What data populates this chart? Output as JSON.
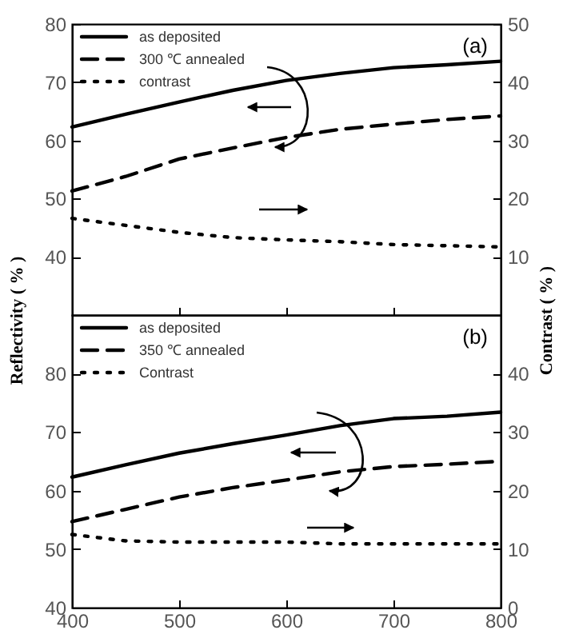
{
  "chart_data": [
    {
      "type": "line",
      "ylabel": "Reflectivity ( % )",
      "y2label": "Contrast ( % )",
      "annotations": [
        "(a)"
      ],
      "x": [
        400,
        450,
        500,
        550,
        600,
        650,
        700,
        750,
        800
      ],
      "xlim": [
        400,
        800
      ],
      "xticks": [
        400,
        500,
        600,
        700,
        800
      ],
      "ylim": [
        30,
        80
      ],
      "yticks": [
        40,
        50,
        60,
        70,
        80
      ],
      "y2lim": [
        0,
        50
      ],
      "y2ticks": [
        10,
        20,
        30,
        40,
        50
      ],
      "tick_labels": "y",
      "legend": "top left",
      "grid": false,
      "marker": "none",
      "series": [
        {
          "name": "as deposited",
          "color": "#000000",
          "line_style": "solid",
          "values": [
            62.3,
            64.5,
            66.6,
            68.6,
            70.3,
            71.5,
            72.5,
            73.0,
            73.6
          ]
        },
        {
          "name": "300 ℃ annealed",
          "color": "#000000",
          "line_style": "dashed",
          "values": [
            51.3,
            53.8,
            56.8,
            58.7,
            60.5,
            61.9,
            62.8,
            63.6,
            64.2
          ]
        },
        {
          "name": "contrast",
          "color": "#000000",
          "line_style": "dotted",
          "axis": "y2",
          "values": [
            16.6,
            15.4,
            14.2,
            13.3,
            12.9,
            12.6,
            12.1,
            11.9,
            11.7
          ]
        }
      ]
    },
    {
      "type": "line",
      "annotations": [
        "(b)"
      ],
      "x": [
        400,
        450,
        500,
        550,
        600,
        650,
        700,
        750,
        800
      ],
      "xlim": [
        400,
        800
      ],
      "xticks": [
        400,
        500,
        600,
        700,
        800
      ],
      "ylim": [
        40,
        90
      ],
      "yticks": [
        40,
        50,
        60,
        70,
        80
      ],
      "y2lim": [
        0,
        50
      ],
      "y2ticks": [
        0,
        10,
        20,
        30,
        40
      ],
      "legend": "top left",
      "grid": false,
      "marker": "none",
      "series": [
        {
          "name": "as deposited",
          "color": "#000000",
          "line_style": "solid",
          "values": [
            62.3,
            64.4,
            66.4,
            68.0,
            69.5,
            71.1,
            72.3,
            72.7,
            73.4
          ]
        },
        {
          "name": "350 ℃ annealed",
          "color": "#000000",
          "line_style": "dashed",
          "values": [
            54.7,
            56.8,
            58.9,
            60.5,
            61.8,
            63.2,
            64.1,
            64.5,
            65.0
          ]
        },
        {
          "name": "Contrast",
          "color": "#000000",
          "line_style": "dotted",
          "axis": "y2",
          "values": [
            12.5,
            11.4,
            11.2,
            11.2,
            11.2,
            10.9,
            10.9,
            10.9,
            10.9
          ]
        }
      ]
    }
  ]
}
